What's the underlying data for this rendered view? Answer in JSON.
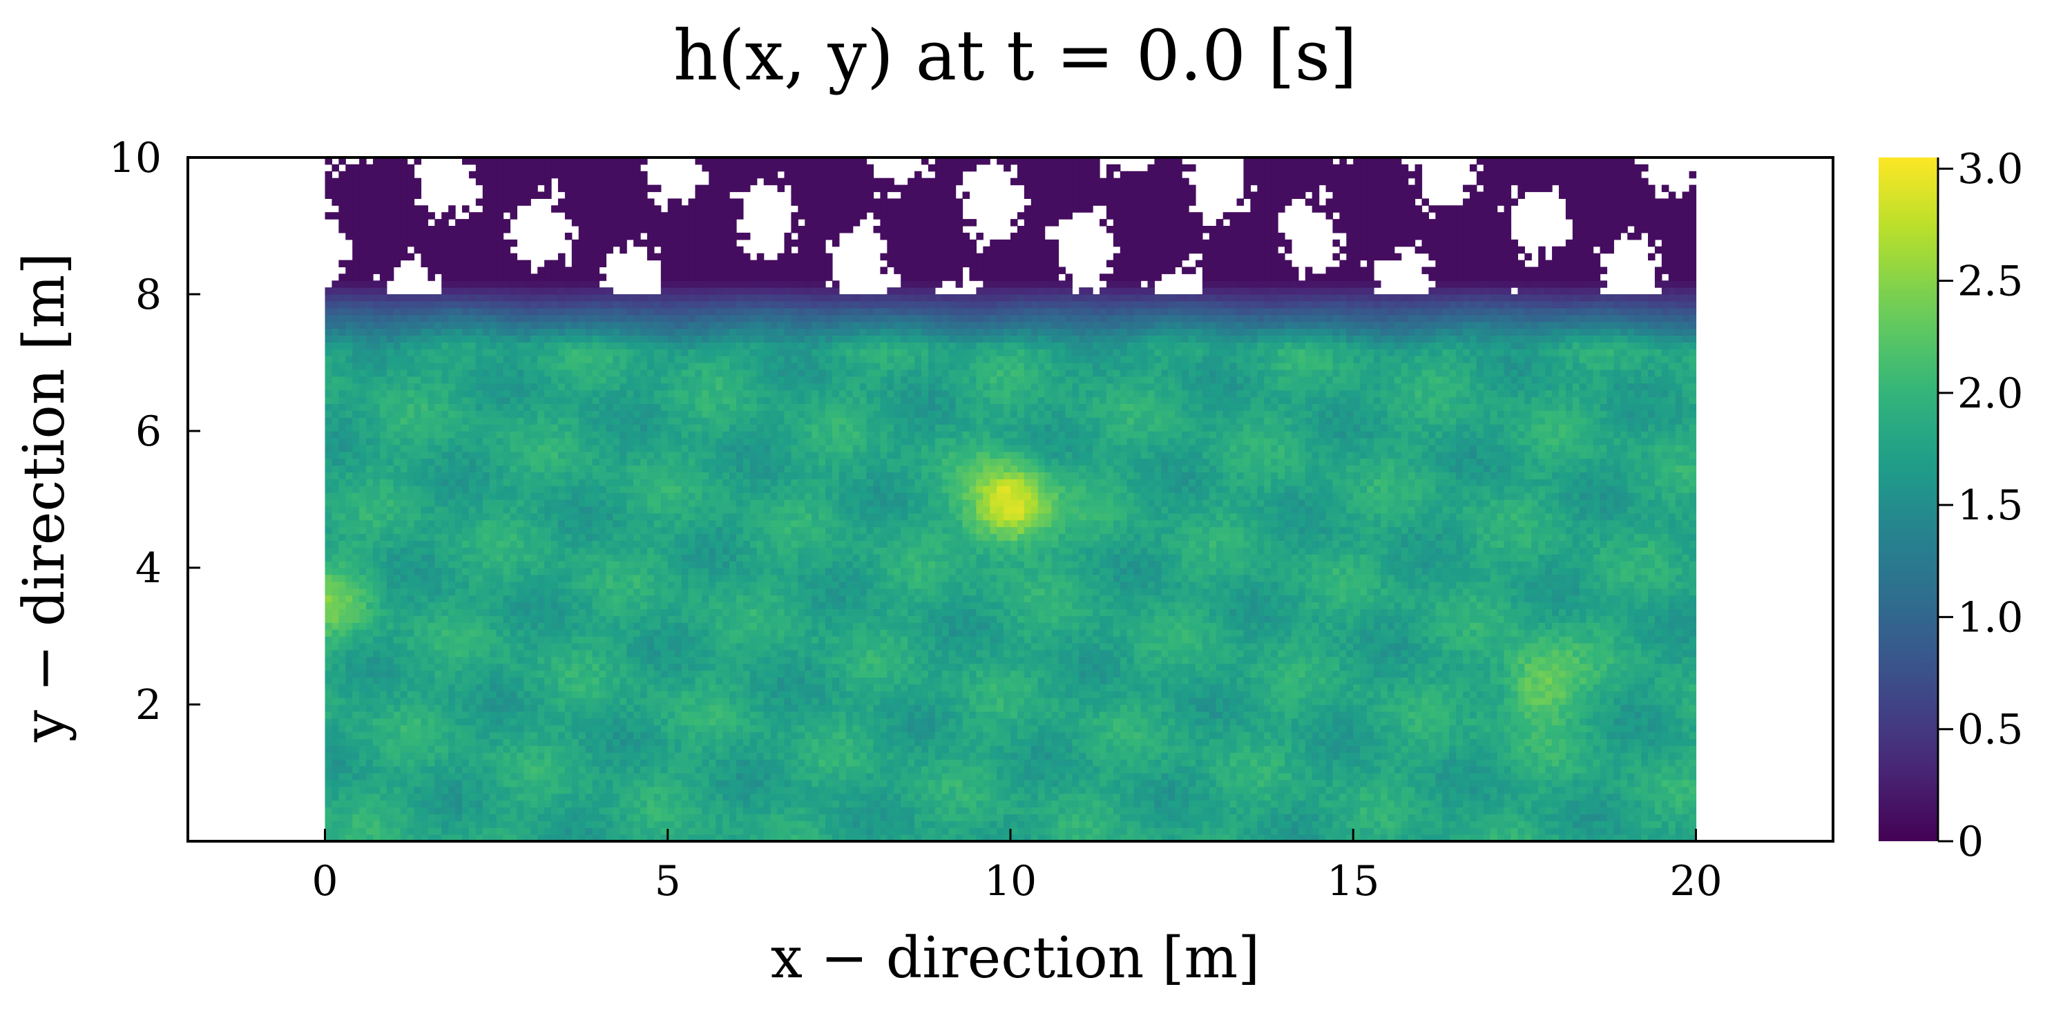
{
  "chart_data": {
    "type": "heatmap",
    "title": "h(x, y) at t = 0.0 [s]",
    "xlabel": "x − direction [m]",
    "ylabel": "y − direction [m]",
    "xlim": [
      -2,
      22
    ],
    "ylim": [
      0,
      10
    ],
    "x_ticks": [
      {
        "value": 0,
        "label": "0"
      },
      {
        "value": 5,
        "label": "5"
      },
      {
        "value": 10,
        "label": "10"
      },
      {
        "value": 15,
        "label": "15"
      },
      {
        "value": 20,
        "label": "20"
      }
    ],
    "y_ticks": [
      {
        "value": 2,
        "label": "2"
      },
      {
        "value": 4,
        "label": "4"
      },
      {
        "value": 6,
        "label": "6"
      },
      {
        "value": 8,
        "label": "8"
      },
      {
        "value": 10,
        "label": "10"
      }
    ],
    "field": {
      "x_range": [
        0,
        20
      ],
      "y_range": [
        0,
        10
      ],
      "base_level": 1.8,
      "dry_zone_y": [
        8,
        10
      ],
      "dry_zone_level": 0.1,
      "transition_y": [
        7.2,
        8.2
      ],
      "peaks": [
        {
          "x": 10,
          "y": 4.9,
          "value": 3.0
        },
        {
          "x": 17.7,
          "y": 2.3,
          "value": 2.45
        },
        {
          "x": 0,
          "y": 3.5,
          "value": 2.3
        }
      ]
    },
    "colorbar": {
      "colormap": "viridis",
      "range": [
        0,
        3.05
      ],
      "ticks": [
        {
          "value": 0,
          "label": "0"
        },
        {
          "value": 0.5,
          "label": "0.5"
        },
        {
          "value": 1.0,
          "label": "1.0"
        },
        {
          "value": 1.5,
          "label": "1.5"
        },
        {
          "value": 2.0,
          "label": "2.0"
        },
        {
          "value": 2.5,
          "label": "2.5"
        },
        {
          "value": 3.0,
          "label": "3.0"
        }
      ]
    },
    "grid": false,
    "legend": "none"
  }
}
